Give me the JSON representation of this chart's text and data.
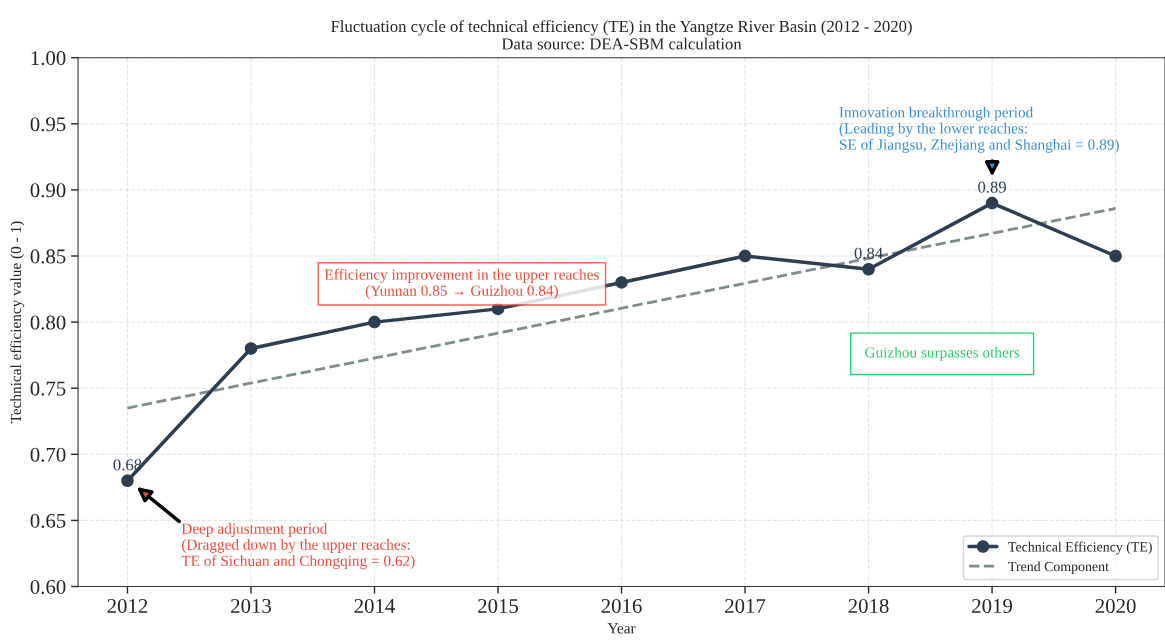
{
  "chart_data": {
    "type": "line",
    "title": "Fluctuation cycle of technical efficiency (TE) in the Yangtze River Basin (2012 - 2020)",
    "subtitle": "Data source: DEA-SBM calculation",
    "xlabel": "Year",
    "ylabel": "Technical efficiency value (0 - 1)",
    "x": [
      2012,
      2013,
      2014,
      2015,
      2016,
      2017,
      2018,
      2019,
      2020
    ],
    "series": [
      {
        "name": "Technical Efficiency (TE)",
        "color": "#2c3e50",
        "marker": "circle",
        "line_style": "solid",
        "values": [
          0.68,
          0.78,
          0.8,
          0.81,
          0.83,
          0.85,
          0.84,
          0.89,
          0.85
        ],
        "value_labels": [
          "0.68",
          null,
          null,
          null,
          null,
          null,
          "0.84",
          "0.89",
          null
        ]
      },
      {
        "name": "Trend Component",
        "color": "#7f8c8d",
        "marker": "none",
        "line_style": "dashed",
        "x": [
          2012,
          2020
        ],
        "values": [
          0.735,
          0.886
        ]
      }
    ],
    "xlim": [
      2011.6,
      2020.4
    ],
    "xticks": [
      2012,
      2013,
      2014,
      2015,
      2016,
      2017,
      2018,
      2019,
      2020
    ],
    "ylim": [
      0.6,
      1.0
    ],
    "yticks": [
      {
        "value": 0.6,
        "label": "0.60"
      },
      {
        "value": 0.65,
        "label": "0.65"
      },
      {
        "value": 0.7,
        "label": "0.70"
      },
      {
        "value": 0.75,
        "label": "0.75"
      },
      {
        "value": 0.8,
        "label": "0.80"
      },
      {
        "value": 0.85,
        "label": "0.85"
      },
      {
        "value": 0.9,
        "label": "0.90"
      },
      {
        "value": 0.95,
        "label": "0.95"
      },
      {
        "value": 1.0,
        "label": "1.00"
      }
    ],
    "annotations": [
      "Deep adjustment period\n(Dragged down by the upper reaches:\nTE of Sichuan and Chongqing = 0.62)",
      {
        "text": "Efficiency improvement in the upper reaches\n(Yunnan 0.85 → Guizhou 0.84)",
        "x": 2015,
        "y": 0.81
      },
      "Guizhou surpasses others",
      "Innovation breakthrough period\n(Leading by the lower reaches:\nSE of Jiangsu, Zhejiang and Shanghai = 0.89)"
    ],
    "grid": true,
    "legend": "lower right"
  }
}
